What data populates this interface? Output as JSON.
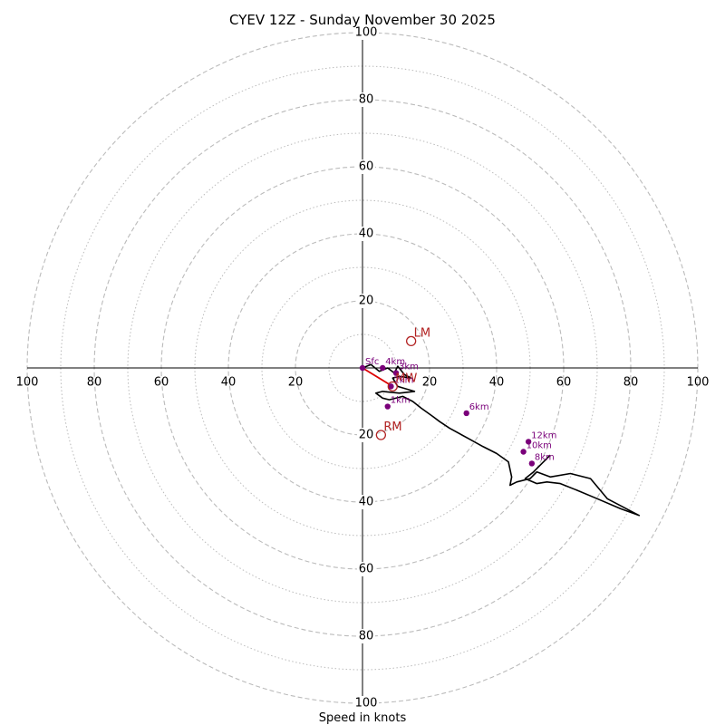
{
  "chart_data": {
    "type": "hodograph",
    "title": "CYEV 12Z - Sunday November 30 2025",
    "xlabel": "Speed in knots",
    "units": "knots",
    "max_speed": 100,
    "ring_major": [
      20,
      40,
      60,
      80,
      100
    ],
    "ring_minor": [
      10,
      30,
      50,
      70,
      90
    ],
    "tick_labels": [
      "20",
      "40",
      "60",
      "80",
      "100"
    ],
    "hodograph": {
      "name": "wind profile",
      "points": [
        [
          0,
          0
        ],
        [
          2.5,
          1
        ],
        [
          5,
          -1
        ],
        [
          7.5,
          0
        ],
        [
          9.5,
          -1.5
        ],
        [
          10.5,
          0.5
        ],
        [
          12.5,
          -2
        ],
        [
          14.5,
          -3
        ],
        [
          11,
          -2.5
        ],
        [
          9,
          -3
        ],
        [
          10.5,
          -5.5
        ],
        [
          15.5,
          -7
        ],
        [
          11,
          -7.5
        ],
        [
          6,
          -7
        ],
        [
          4,
          -7.5
        ],
        [
          6,
          -9
        ],
        [
          8,
          -9.5
        ],
        [
          12,
          -8.5
        ],
        [
          15,
          -10
        ],
        [
          17.5,
          -12
        ],
        [
          21,
          -14.5
        ],
        [
          23,
          -16
        ],
        [
          26,
          -18
        ],
        [
          31.5,
          -21
        ],
        [
          36,
          -23.5
        ],
        [
          40,
          -25.5
        ],
        [
          43.5,
          -28
        ],
        [
          44.5,
          -32.5
        ],
        [
          44,
          -35
        ],
        [
          46,
          -34
        ],
        [
          50,
          -33
        ],
        [
          52,
          -31
        ],
        [
          56,
          -32.5
        ],
        [
          62,
          -31.5
        ],
        [
          68,
          -33
        ],
        [
          73,
          -39
        ],
        [
          82.5,
          -44
        ],
        [
          77,
          -42
        ],
        [
          70,
          -39
        ],
        [
          64,
          -36.5
        ],
        [
          59,
          -34.5
        ],
        [
          55,
          -34
        ],
        [
          52,
          -34.5
        ],
        [
          48.5,
          -33
        ],
        [
          51,
          -31
        ],
        [
          54,
          -28
        ],
        [
          56,
          -26
        ]
      ]
    },
    "height_markers": [
      {
        "label": "Sfc",
        "x": 0,
        "y": 0
      },
      {
        "label": "1km",
        "x": 7.5,
        "y": -11.5
      },
      {
        "label": "2km",
        "x": 8.5,
        "y": -5.5
      },
      {
        "label": "3km",
        "x": 10,
        "y": -1.5
      },
      {
        "label": "4km",
        "x": 6,
        "y": 0
      },
      {
        "label": "6km",
        "x": 31,
        "y": -13.5
      },
      {
        "label": "8km",
        "x": 50.5,
        "y": -28.5
      },
      {
        "label": "10km",
        "x": 48,
        "y": -25
      },
      {
        "label": "12km",
        "x": 49.5,
        "y": -22
      }
    ],
    "storm_motion": [
      {
        "label": "LM",
        "x": 14.5,
        "y": 8
      },
      {
        "label": "RM",
        "x": 5.5,
        "y": -20
      },
      {
        "label": "MW",
        "x": 9,
        "y": -5.5
      }
    ],
    "shear_vector": {
      "from": [
        0,
        0
      ],
      "to": [
        9,
        -5.5
      ]
    }
  },
  "colors": {
    "ring": "#bbbbbb",
    "axis": "#000000",
    "trace": "#000000",
    "marker": "#7a007a",
    "storm": "#b22222",
    "shear": "#dd0000"
  }
}
